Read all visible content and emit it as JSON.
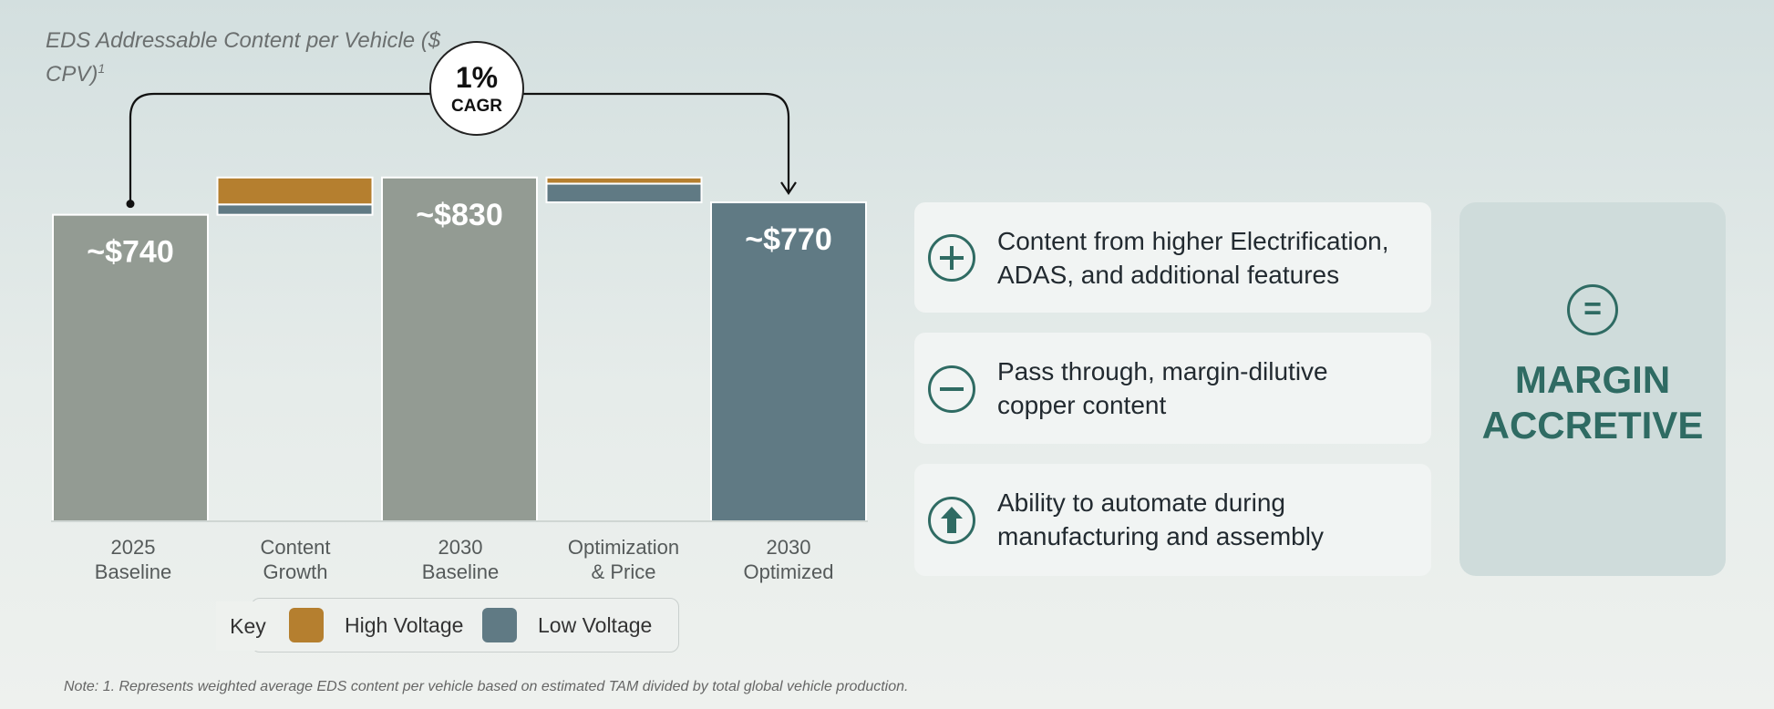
{
  "chart_data": {
    "type": "bar",
    "subtype": "waterfall",
    "ytitle": "EDS Addressable Content per Vehicle ($ CPV)",
    "ytitle_sup": "1",
    "categories": [
      "2025 Baseline",
      "Content Growth",
      "2030 Baseline",
      "Optimization & Price",
      "2030 Optimized"
    ],
    "category_lines": [
      [
        "2025",
        "Baseline"
      ],
      [
        "Content",
        "Growth"
      ],
      [
        "2030",
        "Baseline"
      ],
      [
        "Optimization",
        "& Price"
      ],
      [
        "2030",
        "Optimized"
      ]
    ],
    "totals": [
      {
        "index": 0,
        "value": 740,
        "label": "~$740",
        "color": "#939b93"
      },
      {
        "index": 2,
        "value": 830,
        "label": "~$830",
        "color": "#939b93"
      },
      {
        "index": 4,
        "value": 770,
        "label": "~$770",
        "color": "#607a84"
      }
    ],
    "deltas": [
      {
        "index": 1,
        "base": 740,
        "segments": [
          {
            "series": "Low Voltage",
            "value": 25
          },
          {
            "series": "High Voltage",
            "value": 65
          }
        ]
      },
      {
        "index": 3,
        "base": 830,
        "segments": [
          {
            "series": "High Voltage",
            "value": -15
          },
          {
            "series": "Low Voltage",
            "value": -45
          }
        ]
      }
    ],
    "legend_title": "Key",
    "legend": [
      {
        "name": "High Voltage",
        "color": "#b57f2f"
      },
      {
        "name": "Low Voltage",
        "color": "#607a84"
      }
    ],
    "annotation": {
      "value": "1%",
      "label": "CAGR"
    },
    "ylim": [
      0,
      900
    ]
  },
  "cards": [
    {
      "icon": "plus-circle-icon",
      "text_lines": [
        "Content from higher Electrification,",
        "ADAS, and additional features"
      ]
    },
    {
      "icon": "minus-circle-icon",
      "text_lines": [
        "Pass through, margin-dilutive",
        "copper content"
      ]
    },
    {
      "icon": "arrow-up-circle-icon",
      "text_lines": [
        "Ability to automate during",
        "manufacturing and assembly"
      ]
    }
  ],
  "result": {
    "symbol": "=",
    "lines": [
      "MARGIN",
      "ACCRETIVE"
    ]
  },
  "note": "Note: 1. Represents weighted average EDS content per vehicle based on estimated TAM divided by total global vehicle production.",
  "colors": {
    "accent": "#2f6b63",
    "gray_bar": "#939b93",
    "high_voltage": "#b57f2f",
    "low_voltage": "#607a84"
  }
}
